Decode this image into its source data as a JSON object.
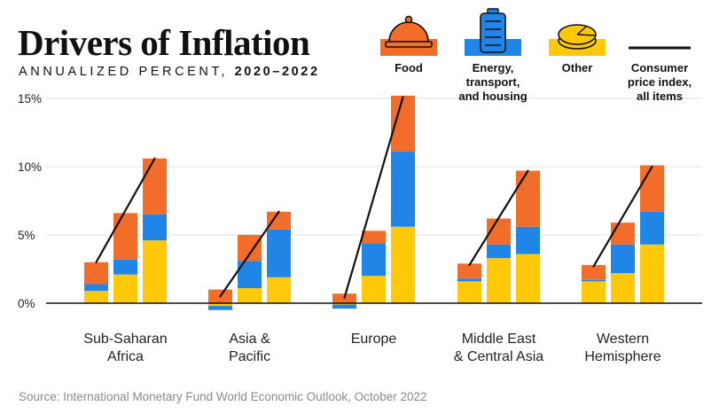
{
  "chart_data": {
    "type": "bar",
    "stacked": true,
    "title": "Drivers of Inflation",
    "subtitle_prefix": "ANNUALIZED PERCENT, ",
    "subtitle_years": "2020–2022",
    "ylim": [
      -0.8,
      15.5
    ],
    "yticks": [
      {
        "value": 0,
        "label": "0%"
      },
      {
        "value": 5,
        "label": "5%"
      },
      {
        "value": 10,
        "label": "10%"
      },
      {
        "value": 15,
        "label": "15%"
      }
    ],
    "legend": [
      {
        "key": "food",
        "icon": "cloche-icon",
        "lines": [
          "Food"
        ]
      },
      {
        "key": "energy",
        "icon": "battery-icon",
        "lines": [
          "Energy,",
          "transport,",
          "and housing"
        ]
      },
      {
        "key": "other",
        "icon": "pie-icon",
        "lines": [
          "Other"
        ]
      },
      {
        "key": "cpi",
        "icon": "line-icon",
        "lines": [
          "Consumer",
          "price index,",
          "all items"
        ]
      }
    ],
    "colors": {
      "food": "#f26d2a",
      "energy": "#1f86e8",
      "other": "#ffc90a",
      "cpi": "#111111"
    },
    "groups": [
      {
        "name": [
          "Sub-Saharan",
          "Africa"
        ],
        "bars": [
          {
            "other": 0.9,
            "energy": 0.5,
            "food": 1.6
          },
          {
            "other": 2.1,
            "energy": 1.1,
            "food": 3.4
          },
          {
            "other": 4.6,
            "energy": 1.9,
            "food": 4.1
          }
        ],
        "cpi": [
          3.0,
          10.6
        ]
      },
      {
        "name": [
          "Asia &",
          "Pacific"
        ],
        "bars": [
          {
            "other": -0.2,
            "energy": -0.3,
            "food": 1.0
          },
          {
            "other": 1.1,
            "energy": 2.0,
            "food": 1.9
          },
          {
            "other": 1.9,
            "energy": 3.5,
            "food": 1.3
          }
        ],
        "cpi": [
          0.5,
          6.7
        ]
      },
      {
        "name": [
          "Europe"
        ],
        "bars": [
          {
            "other": -0.1,
            "energy": -0.3,
            "food": 0.7
          },
          {
            "other": 2.0,
            "energy": 2.4,
            "food": 0.9
          },
          {
            "other": 5.6,
            "energy": 5.5,
            "food": 4.1
          }
        ],
        "cpi": [
          0.4,
          15.1
        ]
      },
      {
        "name": [
          "Middle East",
          "& Central Asia"
        ],
        "bars": [
          {
            "other": 1.6,
            "energy": 0.2,
            "food": 1.1
          },
          {
            "other": 3.3,
            "energy": 1.0,
            "food": 1.9
          },
          {
            "other": 3.6,
            "energy": 2.0,
            "food": 4.1
          }
        ],
        "cpi": [
          2.8,
          9.7
        ]
      },
      {
        "name": [
          "Western",
          "Hemisphere"
        ],
        "bars": [
          {
            "other": 1.6,
            "energy": 0.1,
            "food": 1.1
          },
          {
            "other": 2.2,
            "energy": 2.1,
            "food": 1.6
          },
          {
            "other": 4.3,
            "energy": 2.4,
            "food": 3.4
          }
        ],
        "cpi": [
          2.7,
          10.0
        ]
      }
    ]
  },
  "source": "Source: International Monetary Fund World Economic Outlook, October 2022"
}
